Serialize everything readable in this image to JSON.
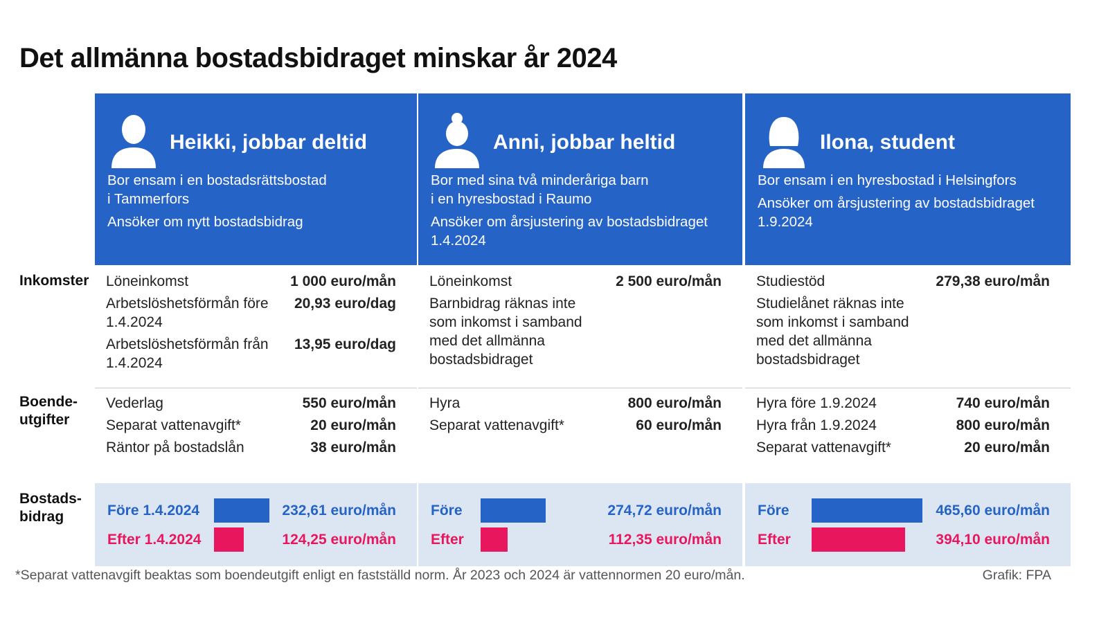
{
  "title": "Det allmänna bostadsbidraget minskar år 2024",
  "colors": {
    "header_bg": "#2563c7",
    "before_bar": "#2563c7",
    "after_bar": "#e8175d",
    "aid_bg": "#dce6f3"
  },
  "row_labels": {
    "income": "Inkomster",
    "costs": "Boende-\nutgifter",
    "aid": "Bostads-\nbidrag"
  },
  "columns": [
    {
      "icon": "man-avatar-icon",
      "name": "Heikki, jobbar deltid",
      "desc1": "Bor ensam i en bostadsrättsbostad\ni Tammerfors",
      "desc2": "Ansöker om nytt bostadsbidrag",
      "income": [
        {
          "label": "Löneinkomst",
          "value": "1 000 euro/mån"
        },
        {
          "label": "Arbetslöshetsförmån före 1.4.2024",
          "value": "20,93 euro/dag"
        },
        {
          "label": "Arbetslöshetsförmån från 1.4.2024",
          "value": "13,95 euro/dag"
        }
      ],
      "income_note": "",
      "costs": [
        {
          "label": "Vederlag",
          "value": "550 euro/mån"
        },
        {
          "label": "Separat vattenavgift*",
          "value": "20 euro/mån"
        },
        {
          "label": "Räntor på bostadslån",
          "value": "38 euro/mån"
        }
      ],
      "aid": {
        "before_label": "Före 1.4.2024",
        "before_value": "232,61 euro/mån",
        "before_amount": 232.61,
        "after_label": "Efter 1.4.2024",
        "after_value": "124,25 euro/mån",
        "after_amount": 124.25
      }
    },
    {
      "icon": "woman-bun-avatar-icon",
      "name": "Anni, jobbar heltid",
      "desc1": "Bor med sina två minderåriga barn\ni en hyresbostad i Raumo",
      "desc2": "Ansöker om årsjustering av bostadsbidraget\n1.4.2024",
      "income": [
        {
          "label": "Löneinkomst",
          "value": "2 500 euro/mån"
        }
      ],
      "income_note": "Barnbidrag räknas inte\nsom inkomst i samband\nmed det allmänna\nbostadsbidraget",
      "costs": [
        {
          "label": "Hyra",
          "value": "800 euro/mån"
        },
        {
          "label": "Separat vattenavgift*",
          "value": "60 euro/mån"
        }
      ],
      "aid": {
        "before_label": "Före",
        "before_value": "274,72 euro/mån",
        "before_amount": 274.72,
        "after_label": "Efter",
        "after_value": "112,35 euro/mån",
        "after_amount": 112.35
      }
    },
    {
      "icon": "woman-avatar-icon",
      "name": "Ilona, student",
      "desc1": "Bor ensam i en hyresbostad i Helsingfors",
      "desc2": "Ansöker om årsjustering av bostadsbidraget\n1.9.2024",
      "income": [
        {
          "label": "Studiestöd",
          "value": "279,38 euro/mån"
        }
      ],
      "income_note": "Studielånet räknas inte\nsom inkomst i samband\nmed det allmänna\nbostadsbidraget",
      "costs": [
        {
          "label": "Hyra före 1.9.2024",
          "value": "740 euro/mån"
        },
        {
          "label": "Hyra från 1.9.2024",
          "value": "800 euro/mån"
        },
        {
          "label": "Separat vattenavgift*",
          "value": "20 euro/mån"
        }
      ],
      "aid": {
        "before_label": "Före",
        "before_value": "465,60 euro/mån",
        "before_amount": 465.6,
        "after_label": "Efter",
        "after_value": "394,10 euro/mån",
        "after_amount": 394.1
      }
    }
  ],
  "footnote": "*Separat vattenavgift beaktas som boendeutgift enligt en fastställd norm. År 2023 och 2024 är vattennormen 20 euro/mån.",
  "credit": "Grafik: FPA"
}
